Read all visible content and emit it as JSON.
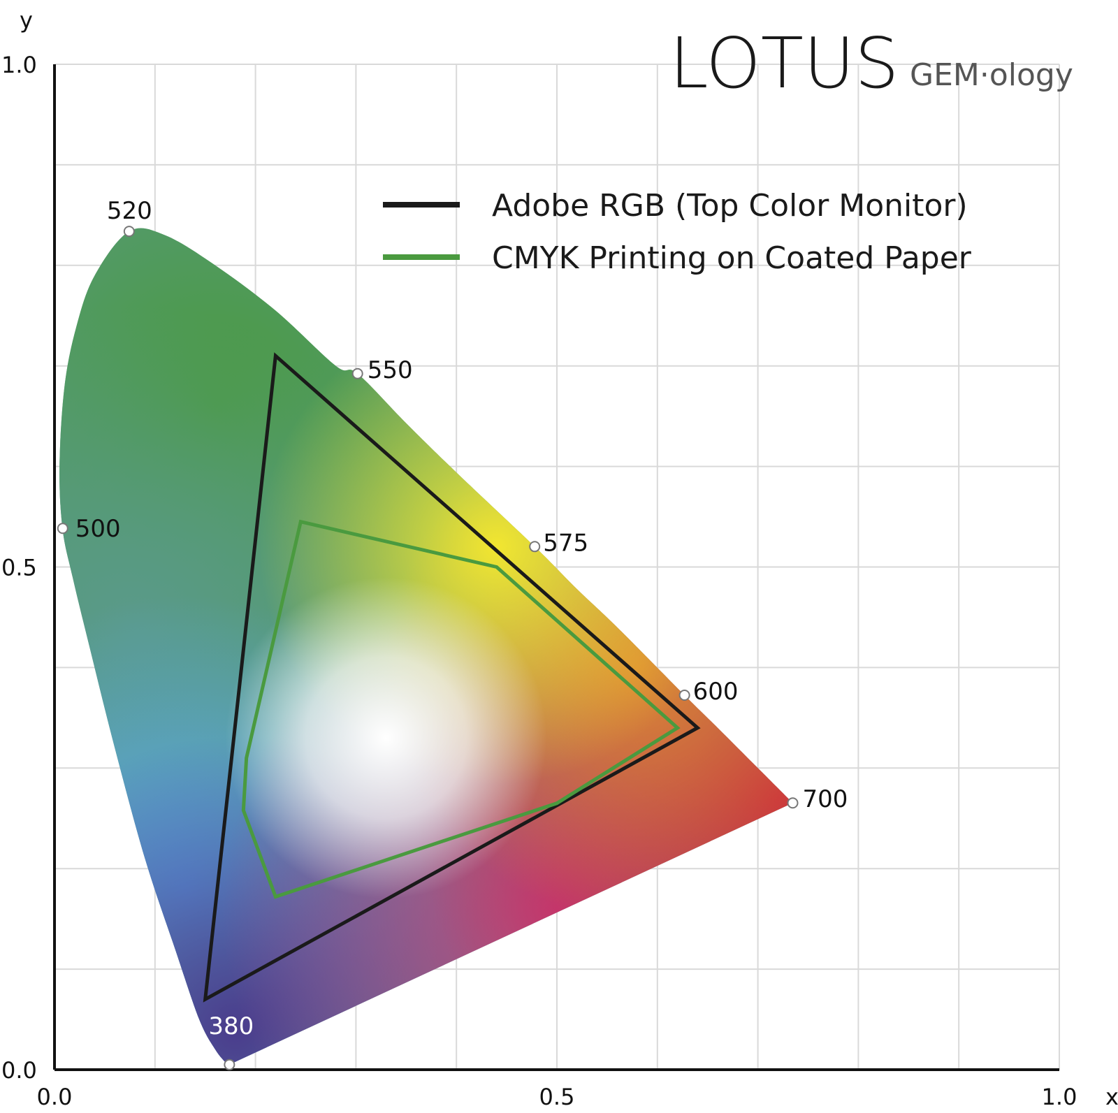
{
  "logo": {
    "main": "LOTUS",
    "sub": "GEM·ology"
  },
  "chart_data": {
    "type": "scatter",
    "title": "",
    "xlabel": "x",
    "ylabel": "y",
    "xlim": [
      0.0,
      1.0
    ],
    "ylim": [
      0.0,
      1.0
    ],
    "grid": true,
    "legend_position": "top-right",
    "x_ticks": [
      {
        "value": 0.0,
        "label": "0.0"
      },
      {
        "value": 0.5,
        "label": "0.5"
      },
      {
        "value": 1.0,
        "label": "1.0"
      }
    ],
    "y_ticks": [
      {
        "value": 0.0,
        "label": "0.0"
      },
      {
        "value": 0.5,
        "label": "0.5"
      },
      {
        "value": 1.0,
        "label": "1.0"
      }
    ],
    "spectral_locus": [
      [
        0.174,
        0.005
      ],
      [
        0.1714,
        0.006
      ],
      [
        0.16,
        0.02
      ],
      [
        0.144,
        0.05
      ],
      [
        0.12,
        0.12
      ],
      [
        0.09,
        0.21
      ],
      [
        0.06,
        0.32
      ],
      [
        0.035,
        0.42
      ],
      [
        0.018,
        0.49
      ],
      [
        0.008,
        0.538
      ],
      [
        0.005,
        0.6
      ],
      [
        0.01,
        0.68
      ],
      [
        0.022,
        0.74
      ],
      [
        0.04,
        0.79
      ],
      [
        0.0743,
        0.8338
      ],
      [
        0.11,
        0.83
      ],
      [
        0.16,
        0.8
      ],
      [
        0.22,
        0.755
      ],
      [
        0.28,
        0.7
      ],
      [
        0.3016,
        0.6923
      ],
      [
        0.35,
        0.643
      ],
      [
        0.4,
        0.594
      ],
      [
        0.4779,
        0.5203
      ],
      [
        0.52,
        0.478
      ],
      [
        0.56,
        0.44
      ],
      [
        0.627,
        0.3725
      ],
      [
        0.66,
        0.34
      ],
      [
        0.7,
        0.3
      ],
      [
        0.7347,
        0.2653
      ]
    ],
    "wavelength_labels": [
      {
        "label": "380",
        "x": 0.1741,
        "y": 0.005
      },
      {
        "label": "500",
        "x": 0.0082,
        "y": 0.5384
      },
      {
        "label": "520",
        "x": 0.0743,
        "y": 0.8338
      },
      {
        "label": "550",
        "x": 0.3016,
        "y": 0.6923
      },
      {
        "label": "575",
        "x": 0.4779,
        "y": 0.5203
      },
      {
        "label": "600",
        "x": 0.627,
        "y": 0.3725
      },
      {
        "label": "700",
        "x": 0.7347,
        "y": 0.2653
      }
    ],
    "series": [
      {
        "name": "Adobe RGB (Top Color Monitor)",
        "color": "#1a1a1a",
        "points": [
          [
            0.22,
            0.71
          ],
          [
            0.64,
            0.34
          ],
          [
            0.15,
            0.07
          ]
        ]
      },
      {
        "name": "CMYK Printing on Coated Paper",
        "color": "#4a9a3f",
        "points": [
          [
            0.245,
            0.545
          ],
          [
            0.44,
            0.5
          ],
          [
            0.62,
            0.34
          ],
          [
            0.5,
            0.265
          ],
          [
            0.22,
            0.172
          ],
          [
            0.188,
            0.258
          ],
          [
            0.191,
            0.31
          ]
        ]
      }
    ],
    "colors": {
      "red": "#c8283e",
      "magenta": "#c8387e",
      "violet": "#4a3c8c",
      "blue": "#5aa8e8",
      "teal": "#5a9a8a",
      "green": "#4a9a3f",
      "yellow": "#f2e630",
      "orange": "#e08a30",
      "white_point": "#ffffff"
    }
  }
}
